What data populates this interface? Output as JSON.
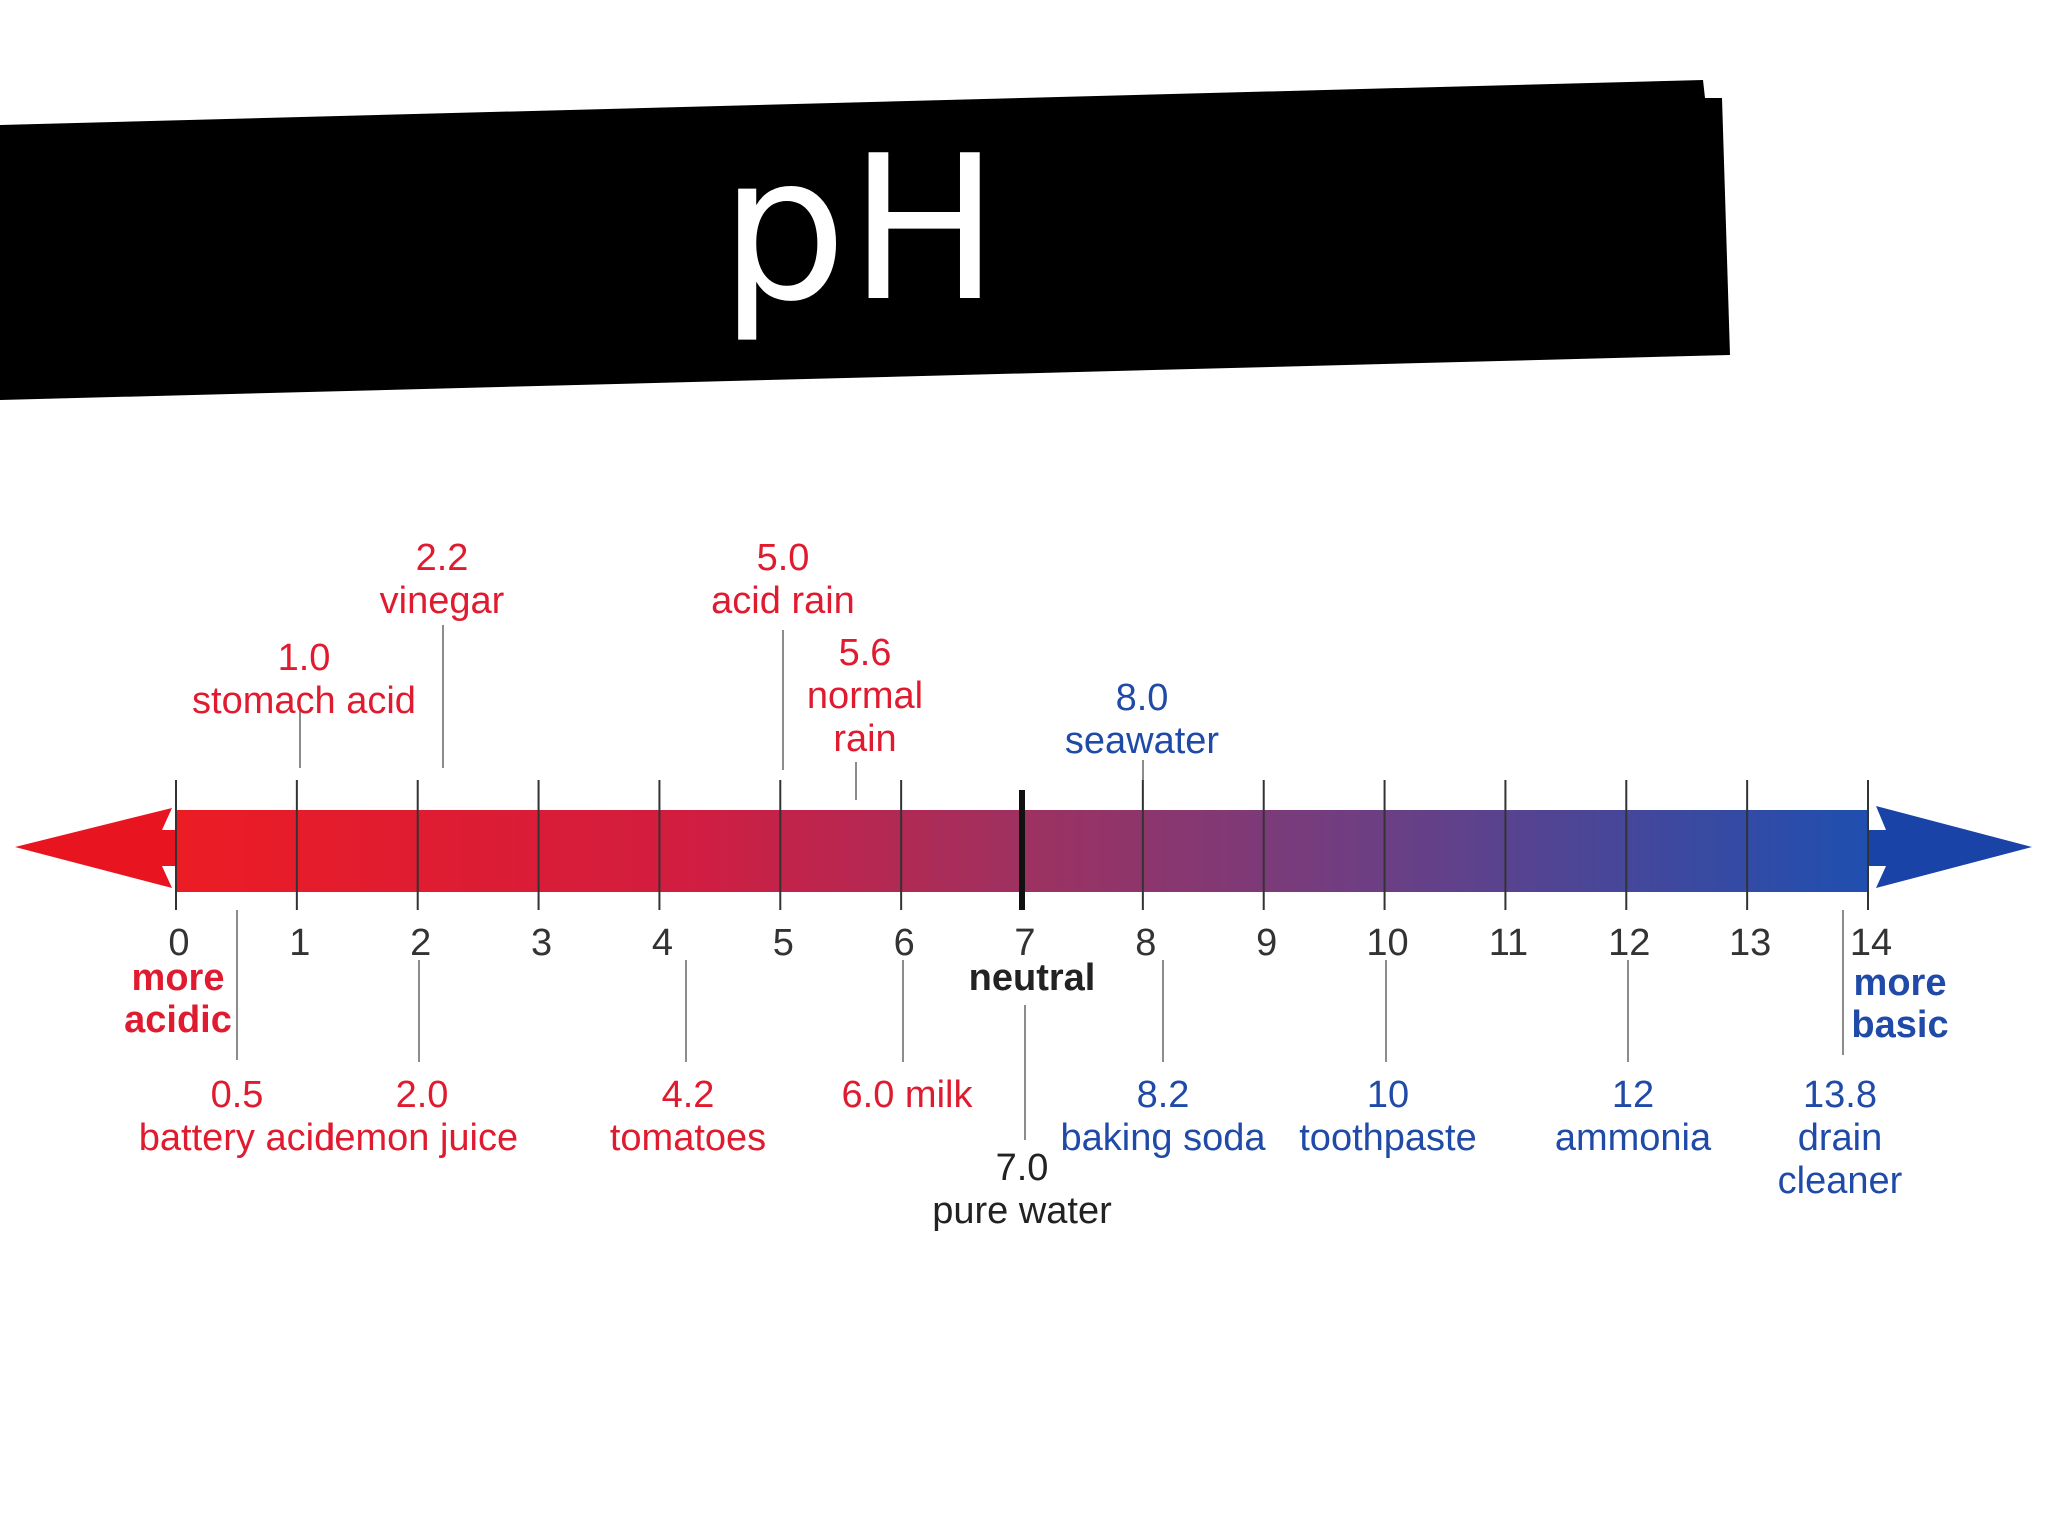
{
  "title": "pH",
  "colors": {
    "acid": "#e01b2f",
    "base": "#1f4aa8",
    "neutral": "#222222",
    "banner": "#000000"
  },
  "scale": {
    "ticks": [
      "0",
      "1",
      "2",
      "3",
      "4",
      "5",
      "6",
      "7",
      "8",
      "9",
      "10",
      "11",
      "12",
      "13",
      "14"
    ],
    "left_label": [
      "more",
      "acidic"
    ],
    "right_label": [
      "more",
      "basic"
    ],
    "center_label": "neutral"
  },
  "substances_above": [
    {
      "value": "1.0",
      "lines": [
        "stomach acid"
      ],
      "ph": 1.0,
      "kind": "acid"
    },
    {
      "value": "2.2",
      "lines": [
        "vinegar"
      ],
      "ph": 2.2,
      "kind": "acid"
    },
    {
      "value": "5.0",
      "lines": [
        "acid rain"
      ],
      "ph": 5.0,
      "kind": "acid"
    },
    {
      "value": "5.6",
      "lines": [
        "normal",
        "rain"
      ],
      "ph": 5.6,
      "kind": "acid"
    },
    {
      "value": "8.0",
      "lines": [
        "seawater"
      ],
      "ph": 8.0,
      "kind": "base"
    }
  ],
  "substances_below": [
    {
      "value": "0.5",
      "lines": [
        "battery acid"
      ],
      "ph": 0.5,
      "kind": "acid"
    },
    {
      "value": "2.0",
      "lines": [
        "lemon juice"
      ],
      "ph": 2.0,
      "kind": "acid"
    },
    {
      "value": "4.2",
      "lines": [
        "tomatoes"
      ],
      "ph": 4.2,
      "kind": "acid"
    },
    {
      "value": "6.0 milk",
      "lines": [],
      "ph": 6.0,
      "kind": "acid"
    },
    {
      "value": "7.0",
      "lines": [
        "pure water"
      ],
      "ph": 7.0,
      "kind": "neutral"
    },
    {
      "value": "8.2",
      "lines": [
        "baking soda"
      ],
      "ph": 8.2,
      "kind": "base"
    },
    {
      "value": "10",
      "lines": [
        "toothpaste"
      ],
      "ph": 10,
      "kind": "base"
    },
    {
      "value": "12",
      "lines": [
        "ammonia"
      ],
      "ph": 12,
      "kind": "base"
    },
    {
      "value": "13.8",
      "lines": [
        "drain",
        "cleaner"
      ],
      "ph": 13.8,
      "kind": "base"
    }
  ]
}
